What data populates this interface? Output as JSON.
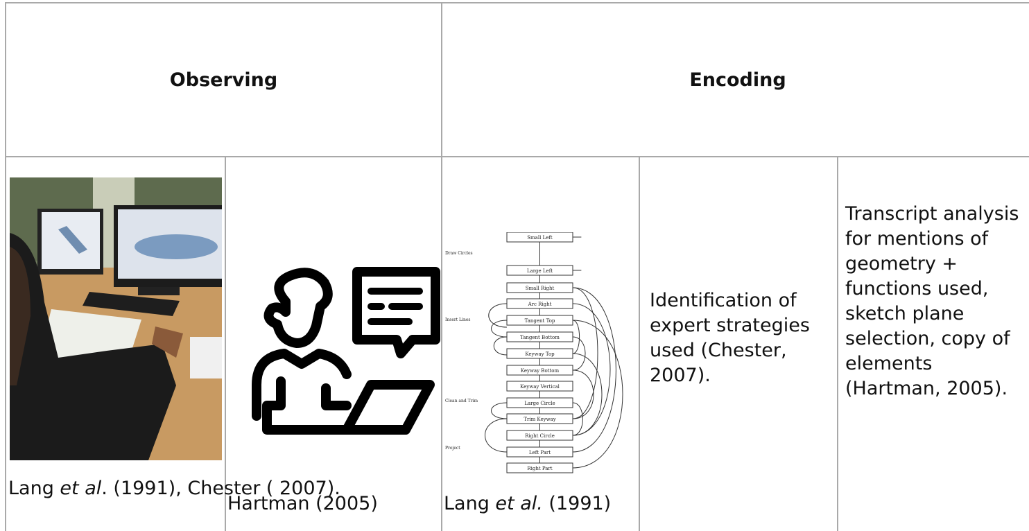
{
  "table": {
    "header": [
      "Observing",
      "Encoding"
    ],
    "cells": [
      {
        "caption": [
          "Lang ",
          "et al",
          ". (1991), Chester ( 2007)."
        ]
      },
      {
        "caption": [
          "Hartman (2005)"
        ]
      },
      {
        "caption": [
          "Lang ",
          "et al.",
          " (1991)"
        ],
        "diagram": {
          "nodes": [
            "Small Left",
            "Large Left",
            "Small Right",
            "Arc Right",
            "Tangent Top",
            "Tangent Bottom",
            "Keyway Top",
            "Keyway Bottom",
            "Keyway Vertical",
            "Large Circle",
            "Trim Keyway",
            "Right Circle",
            "Left Part",
            "Right Part"
          ],
          "groups": [
            "Draw Circles",
            "Insert Lines",
            "Clean and Trim",
            "Project"
          ]
        }
      },
      {
        "text": "Identification of expert strategies used (Chester, 2007)."
      },
      {
        "text": "Transcript analysis for mentions of geometry + functions used, sketch plane selection, copy of elements (Hartman, 2005)."
      }
    ]
  }
}
